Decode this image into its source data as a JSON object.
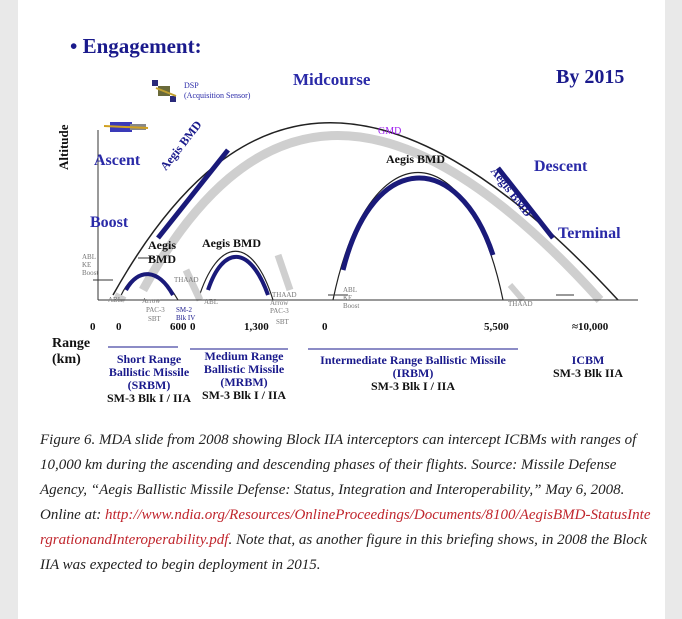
{
  "slide": {
    "bullet": "• Engagement:",
    "year": "By 2015",
    "phases": {
      "midcourse": "Midcourse",
      "ascent": "Ascent",
      "boost": "Boost",
      "descent": "Descent",
      "terminal": "Terminal"
    },
    "dsp": {
      "line1": "DSP",
      "line2": "(Acquisition Sensor)"
    },
    "gmd": "GMD",
    "aegis_curve_labels": {
      "left": "Aegis BMD",
      "right": "Aegis BMD"
    },
    "aegis_labels": {
      "srbm_line1": "Aegis",
      "srbm_line2": "BMD",
      "mrbm": "Aegis BMD",
      "irbm": "Aegis BMD"
    },
    "small_labels": {
      "abl_kf_boost_left": [
        "ABL",
        "KE",
        "Boost"
      ],
      "abl_kf_boost_mid": [
        "ABL",
        "KE",
        "Boost"
      ],
      "abl_1": "ABL",
      "abl_2": "ABL",
      "arrow": "Arrow",
      "pac3": "PAC-3",
      "sbt": "SBT",
      "thaad_1": "THAAD",
      "thaad_2": "THAAD",
      "arrow_pac3_right": [
        "Arrow",
        "PAC-3"
      ],
      "sbt_right": "SBT",
      "thaad_right": "THAAD",
      "sm2_blk_iv": [
        "SM-2",
        "Blk IV"
      ]
    },
    "yaxis": "Altitude",
    "range_label": [
      "Range",
      "(km)"
    ],
    "ticks": [
      "0",
      "0",
      "600",
      "0",
      "1,300",
      "0",
      "5,500",
      "≈10,000"
    ],
    "categories": {
      "srbm": {
        "lines": [
          "Short Range",
          "Ballistic Missile",
          "(SRBM)"
        ],
        "weapon": "SM-3 Blk I / IIA"
      },
      "mrbm": {
        "lines": [
          "Medium Range",
          "Ballistic Missile",
          "(MRBM)"
        ],
        "weapon": "SM-3 Blk I / IIA"
      },
      "irbm": {
        "lines": [
          "Intermediate Range Ballistic Missile",
          "(IRBM)"
        ],
        "weapon": "SM-3 Blk I / IIA"
      },
      "icbm": {
        "lines": [
          "ICBM"
        ],
        "weapon": "SM-3 Blk IIA"
      }
    }
  },
  "caption": {
    "text_before_link": "Figure 6.  MDA slide from 2008 showing Block IIA interceptors can intercept ICBMs with ranges of 10,000 km during the ascending and descending phases of their flights.  Source: Missile Defense Agency, “Aegis Ballistic Missile Defense: Status, Integration and Interoperability,” May 6, 2008.  Online at: ",
    "link": "http://www.ndia.org/Resources/OnlineProceedings/Documents/8100/AegisBMD-StatusIntergrationandInteroperability.pdf",
    "text_after_link": ".  Note that, as another figure in this briefing shows, in 2008 the Block IIA was expected to begin deployment in 2015."
  },
  "colors": {
    "title_blue": "#1a1a8c",
    "curve_navy": "#1a1a7a",
    "arc_gray": "#c8c8c8",
    "gmd_purple": "#a020f0",
    "link_red": "#c0262d"
  }
}
